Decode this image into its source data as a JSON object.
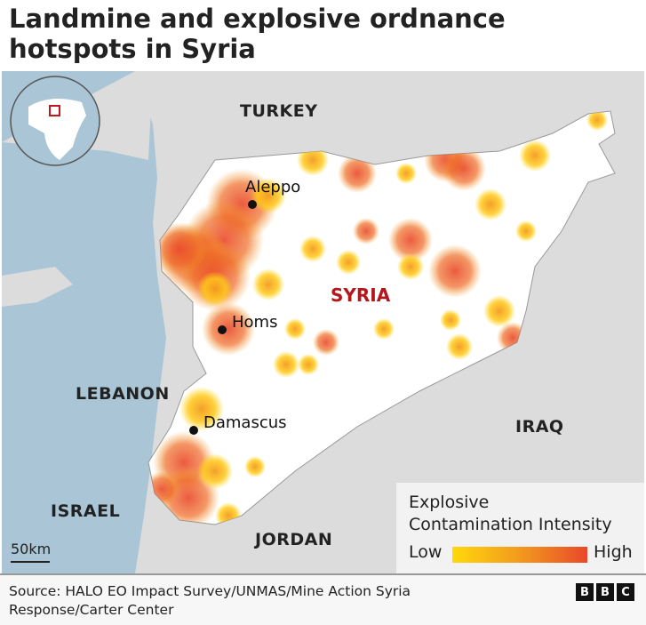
{
  "title": "Landmine and explosive ordnance hotspots in Syria",
  "countries": {
    "turkey": "TURKEY",
    "syria": "SYRIA",
    "lebanon": "LEBANON",
    "israel": "ISRAEL",
    "jordan": "JORDAN",
    "iraq": "IRAQ"
  },
  "cities": {
    "aleppo": "Aleppo",
    "homs": "Homs",
    "damascus": "Damascus"
  },
  "legend": {
    "title": "Explosive Contamination Intensity",
    "low": "Low",
    "high": "High",
    "colors": [
      "#ffd80a",
      "#f29a1e",
      "#e9482a"
    ]
  },
  "scale": "50km",
  "source": "Source: HALO EO Impact Survey/UNMAS/Mine Action Syria Response/Carter Center",
  "logo": "BBC",
  "colors": {
    "sea": "#a9c5d6",
    "land": "#dcdcdc",
    "syria": "#ffffff",
    "label_syria": "#b5161c",
    "locator": "#c4161c"
  }
}
